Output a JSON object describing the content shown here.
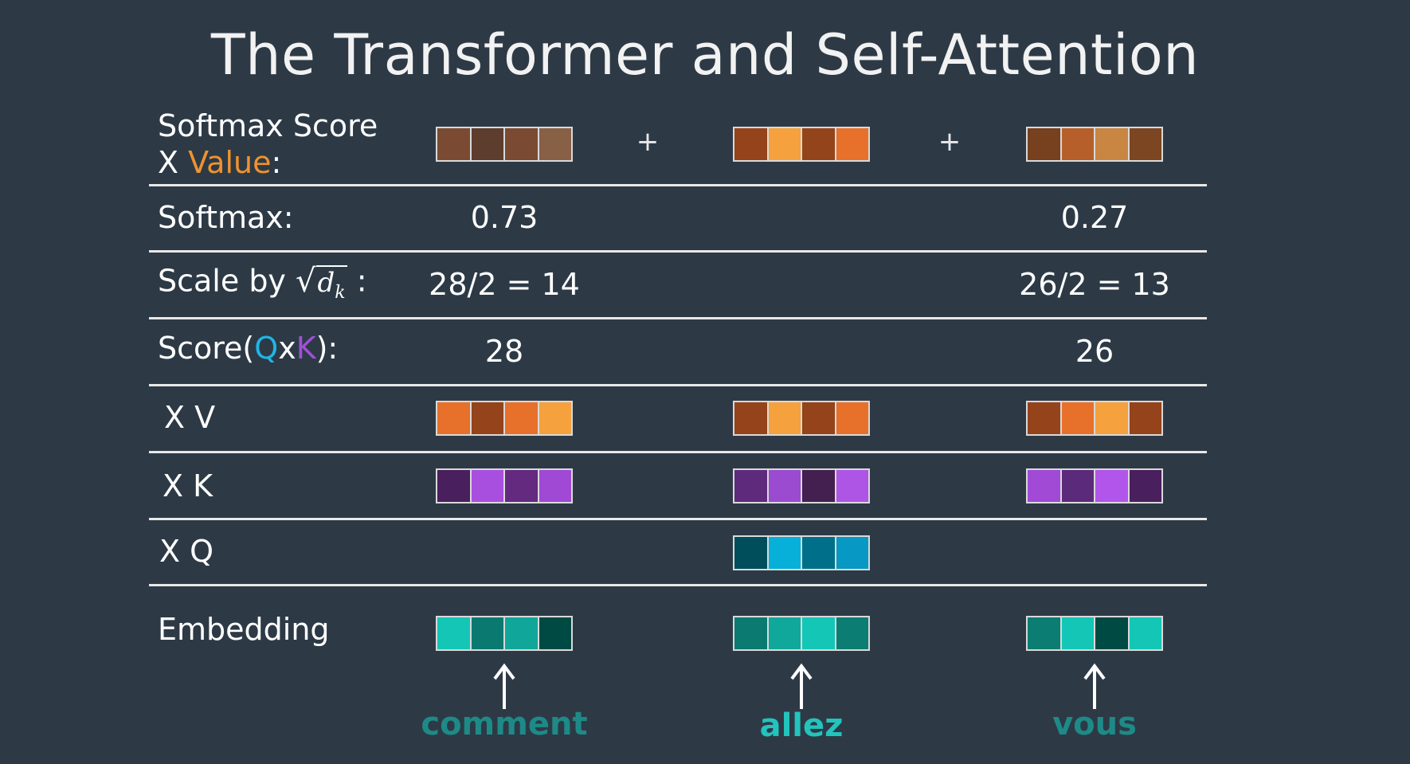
{
  "title": "The Transformer and Self-Attention",
  "rows": {
    "softmax_value": {
      "line1": "Softmax Score",
      "line2_prefix": "X ",
      "line2_highlight": "Value",
      "line2_suffix": ":"
    },
    "softmax": {
      "label": "Softmax:",
      "values": [
        "0.73",
        "",
        "0.27"
      ]
    },
    "scale": {
      "label_prefix": "Scale by",
      "sqrt_symbol": "√",
      "sqrt_body": "d",
      "sqrt_sub": "k",
      "label_suffix": ":",
      "values": [
        "28/2 = 14",
        "",
        "26/2 = 13"
      ]
    },
    "score": {
      "label_prefix": "Score(",
      "q": "Q",
      "x": "x",
      "k": "K",
      "label_suffix": "):",
      "values": [
        "28",
        "",
        "26"
      ]
    },
    "xv": {
      "label": "X V"
    },
    "xk": {
      "label": "X K"
    },
    "xq": {
      "label": "X Q"
    },
    "embedding": {
      "label": "Embedding"
    }
  },
  "plus_sign": "+",
  "words": [
    "comment",
    "allez",
    "vous"
  ],
  "colors": {
    "background": "#2d3a46",
    "value_highlight": "#f0922e",
    "q_highlight": "#1fb6e6",
    "k_highlight": "#a24fd8",
    "word_dim": "#1e8a88",
    "word_active": "#22c4bd"
  },
  "vectors": {
    "softmax_value": [
      [
        "#7a4b32",
        "#5c3d2e",
        "#7a4a33",
        "#876046"
      ],
      [
        "#95431a",
        "#f5a13d",
        "#94441b",
        "#e7702a"
      ],
      [
        "#77401f",
        "#b65f2a",
        "#c98642",
        "#7c4622"
      ]
    ],
    "xv": [
      [
        "#e7702a",
        "#95431a",
        "#e7702a",
        "#f5a13d"
      ],
      [
        "#95431a",
        "#f5a13d",
        "#95431a",
        "#e7702a"
      ],
      [
        "#95431a",
        "#e7702a",
        "#f5a13d",
        "#95431a"
      ]
    ],
    "xk": [
      [
        "#4a1f5e",
        "#a94fe0",
        "#632a80",
        "#a049d4"
      ],
      [
        "#5e2a7c",
        "#9b4bd0",
        "#43204f",
        "#ae55e6"
      ],
      [
        "#a04ad6",
        "#5c2a7a",
        "#b255ea",
        "#4a1f5e"
      ]
    ],
    "xq": [
      null,
      [
        "#004d5c",
        "#06b0d9",
        "#00708a",
        "#0898c4"
      ],
      null
    ],
    "embedding": [
      [
        "#14c6b6",
        "#0a7a70",
        "#10a79a",
        "#004a44"
      ],
      [
        "#0b7a70",
        "#10a89a",
        "#14c6b6",
        "#0b7d72"
      ],
      [
        "#0b7d72",
        "#14c6b6",
        "#004a44",
        "#14c6b6"
      ]
    ]
  }
}
